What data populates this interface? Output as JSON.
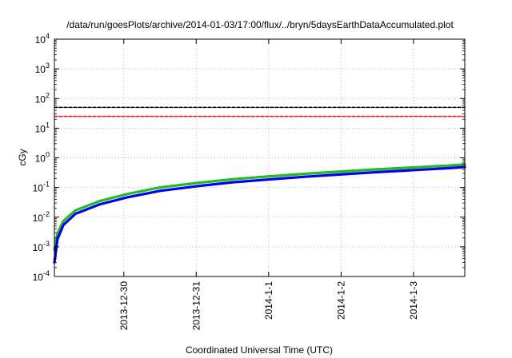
{
  "chart_data": {
    "type": "line",
    "title": "/data/run/goesPlots/archive/2014-01-03/17:00/flux/../bryn/5daysEarthDataAccumulated.plot",
    "xlabel": "Coordinated Universal Time (UTC)",
    "ylabel": "cGy",
    "x_type": "date",
    "xlim": [
      "2013-12-29T01:00",
      "2014-01-03T17:00"
    ],
    "x_ticks": [
      "2013-12-30",
      "2013-12-31",
      "2014-01-01",
      "2014-01-02",
      "2014-01-03"
    ],
    "x_tick_labels": [
      "2013-12-30",
      "2013-12-31",
      "2014-1-1",
      "2014-1-2",
      "2014-1-3"
    ],
    "y_scale": "log",
    "ylim": [
      0.0001,
      10000
    ],
    "y_tick_exponents": [
      -4,
      -3,
      -2,
      -1,
      0,
      1,
      2,
      3,
      4
    ],
    "y_tick_base": "10",
    "grid": true,
    "series": [
      {
        "color": "#22bb22",
        "style": "solid",
        "x": [
          "2013-12-29T01:00",
          "2013-12-29T02:00",
          "2013-12-29T04:00",
          "2013-12-29T08:00",
          "2013-12-29T16:00",
          "2013-12-30T01:00",
          "2013-12-30T12:00",
          "2013-12-31T01:00",
          "2013-12-31T12:00",
          "2014-01-01T01:00",
          "2014-01-01T12:00",
          "2014-01-02T01:00",
          "2014-01-02T12:00",
          "2014-01-03T01:00",
          "2014-01-03T12:00",
          "2014-01-03T17:00"
        ],
        "values": [
          0.0008,
          0.0028,
          0.0075,
          0.017,
          0.035,
          0.06,
          0.1,
          0.145,
          0.19,
          0.24,
          0.29,
          0.35,
          0.41,
          0.48,
          0.55,
          0.6
        ]
      },
      {
        "color": "#0000ee",
        "style": "solid",
        "x": [
          "2013-12-29T01:00",
          "2013-12-29T02:00",
          "2013-12-29T04:00",
          "2013-12-29T08:00",
          "2013-12-29T16:00",
          "2013-12-30T01:00",
          "2013-12-30T12:00",
          "2013-12-31T01:00",
          "2013-12-31T12:00",
          "2014-01-01T01:00",
          "2014-01-01T12:00",
          "2014-01-02T01:00",
          "2014-01-02T12:00",
          "2014-01-03T01:00",
          "2014-01-03T12:00",
          "2014-01-03T17:00"
        ],
        "values": [
          0.0003,
          0.0018,
          0.0055,
          0.013,
          0.027,
          0.046,
          0.077,
          0.113,
          0.15,
          0.19,
          0.23,
          0.28,
          0.33,
          0.39,
          0.45,
          0.49
        ]
      },
      {
        "color": "#000000",
        "style": "dashed",
        "x": [
          "2013-12-29T01:00",
          "2014-01-03T17:00"
        ],
        "values": [
          50,
          50
        ]
      },
      {
        "color": "#ff0000",
        "style": "dashed",
        "x": [
          "2013-12-29T01:00",
          "2014-01-03T17:00"
        ],
        "values": [
          25,
          25
        ]
      }
    ]
  }
}
